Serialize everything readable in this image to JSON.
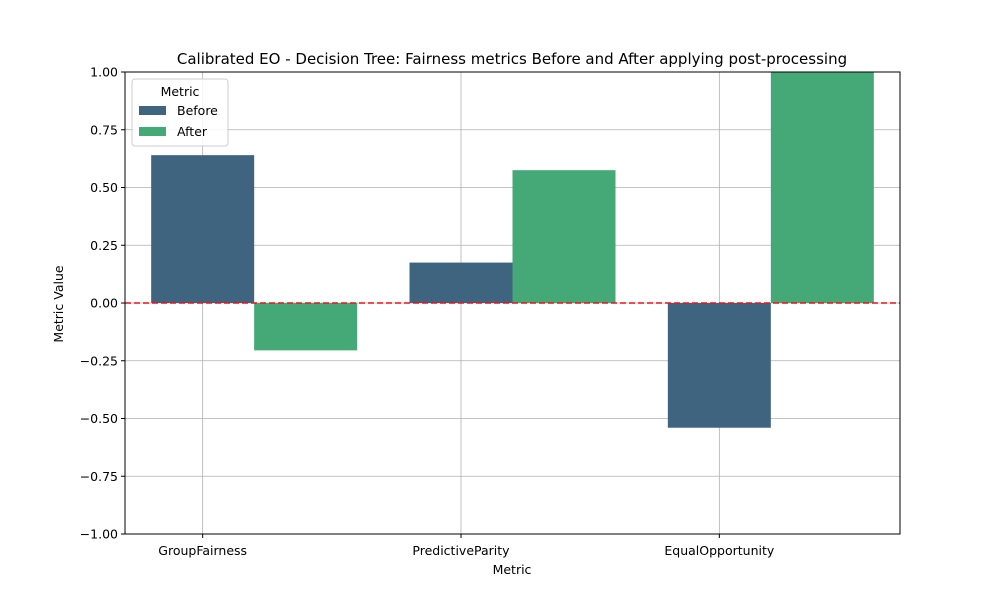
{
  "chart_data": {
    "type": "bar",
    "title": "Calibrated EO - Decision Tree: Fairness metrics Before and After applying post-processing",
    "xlabel": "Metric",
    "ylabel": "Metric Value",
    "categories": [
      "GroupFairness",
      "PredictiveParity",
      "EqualOpportunity"
    ],
    "series": [
      {
        "name": "Before",
        "values": [
          0.64,
          0.175,
          -0.54
        ],
        "color": "#3e6480"
      },
      {
        "name": "After",
        "values": [
          -0.205,
          0.575,
          1.0
        ],
        "color": "#44a877"
      }
    ],
    "ylim": [
      -1.0,
      1.0
    ],
    "yticks": [
      -1.0,
      -0.75,
      -0.5,
      -0.25,
      0.0,
      0.25,
      0.5,
      0.75,
      1.0
    ],
    "ytick_labels": [
      "−1.00",
      "−0.75",
      "−0.50",
      "−0.25",
      "0.00",
      "0.25",
      "0.50",
      "0.75",
      "1.00"
    ],
    "grid": true,
    "reference_line": {
      "y": 0,
      "color": "#e8141a",
      "style": "dashed"
    },
    "legend": {
      "title": "Metric",
      "placement": "top-left"
    }
  }
}
